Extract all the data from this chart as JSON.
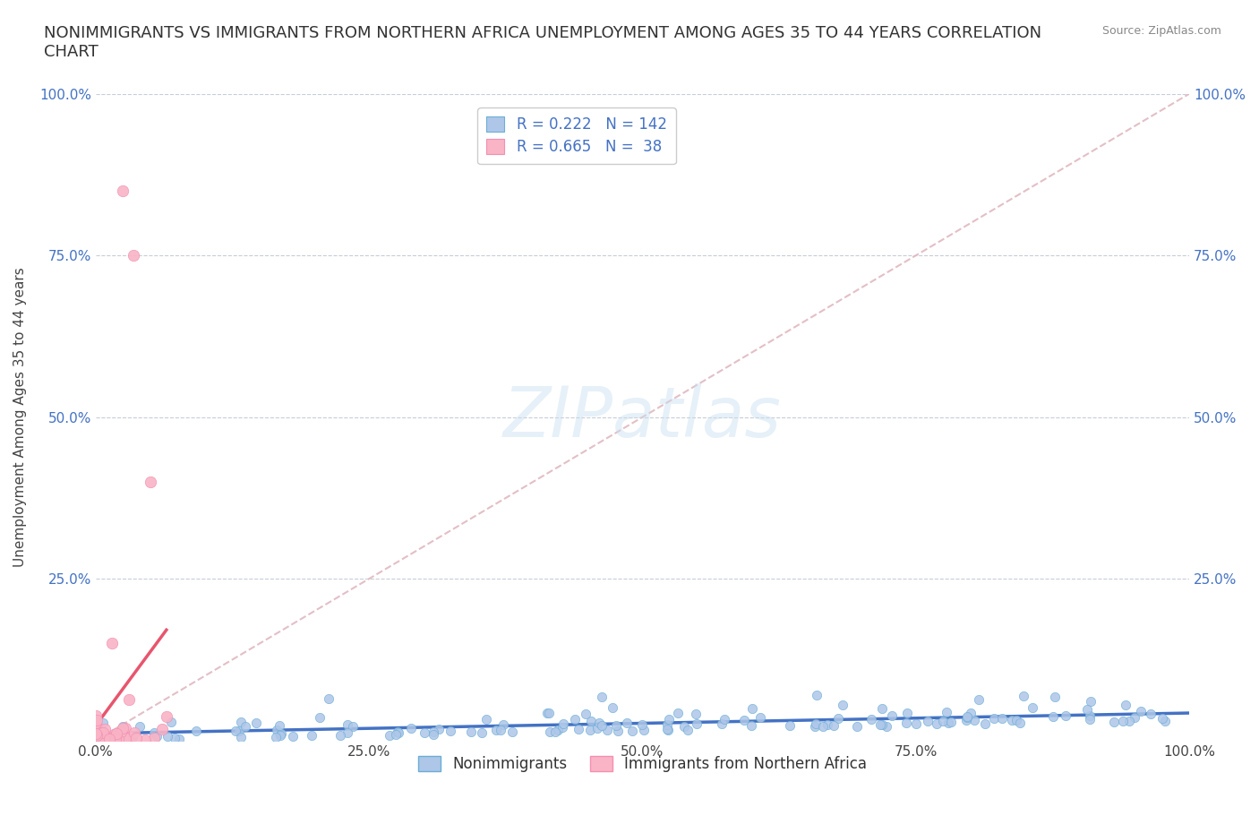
{
  "title": "NONIMMIGRANTS VS IMMIGRANTS FROM NORTHERN AFRICA UNEMPLOYMENT AMONG AGES 35 TO 44 YEARS CORRELATION\nCHART",
  "source_text": "Source: ZipAtlas.com",
  "ylabel": "Unemployment Among Ages 35 to 44 years",
  "xlim": [
    0,
    1.0
  ],
  "ylim": [
    0,
    1.0
  ],
  "xtick_labels": [
    "0.0%",
    "25.0%",
    "50.0%",
    "75.0%",
    "100.0%"
  ],
  "xtick_vals": [
    0.0,
    0.25,
    0.5,
    0.75,
    1.0
  ],
  "ytick_labels": [
    "25.0%",
    "50.0%",
    "75.0%",
    "100.0%"
  ],
  "ytick_vals": [
    0.25,
    0.5,
    0.75,
    1.0
  ],
  "right_ytick_labels": [
    "25.0%",
    "50.0%",
    "75.0%",
    "100.0%"
  ],
  "right_ytick_vals": [
    0.25,
    0.5,
    0.75,
    1.0
  ],
  "watermark": "ZIPatlas",
  "nonimm_color": "#aec6e8",
  "nonimm_edge_color": "#6aaed6",
  "imm_color": "#f9b4c6",
  "imm_edge_color": "#f48fb1",
  "nonimm_trend_color": "#4472c4",
  "imm_trend_color": "#e8556e",
  "ref_line_color": "#e0b8c0",
  "nonimm_R": 0.222,
  "nonimm_N": 142,
  "imm_R": 0.665,
  "imm_N": 38,
  "legend_label_1": "Nonimmigrants",
  "legend_label_2": "Immigrants from Northern Africa",
  "background_color": "#ffffff",
  "grid_color": "#b0b8c8",
  "title_fontsize": 13,
  "axis_label_fontsize": 11,
  "tick_fontsize": 11,
  "legend_fontsize": 12
}
